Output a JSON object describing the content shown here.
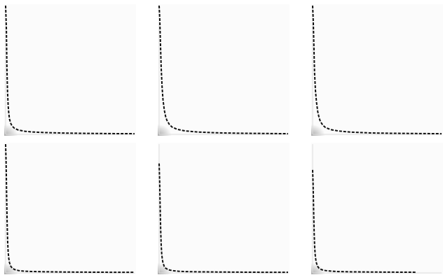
{
  "figure": {
    "background": "#ffffff",
    "panel_background": "#fbfbfb",
    "curve_color": "#111111",
    "density_color": "#666666",
    "layout": "2x3"
  },
  "chart_data": [
    {
      "type": "line",
      "xlim": [
        0,
        100
      ],
      "ylim": [
        0,
        100
      ],
      "grid": false,
      "series": [
        {
          "style": "dashed",
          "x": [
            0,
            0.6,
            1,
            1.5,
            2,
            2.5,
            3,
            4,
            5,
            7,
            10,
            15,
            20,
            30,
            45,
            60,
            80,
            100
          ],
          "y": [
            100,
            82,
            52,
            33,
            22,
            16,
            12,
            8.5,
            6.5,
            4.6,
            3.3,
            2.4,
            1.9,
            1.4,
            1.0,
            0.8,
            0.6,
            0.5
          ]
        }
      ]
    },
    {
      "type": "line",
      "xlim": [
        0,
        100
      ],
      "ylim": [
        0,
        100
      ],
      "grid": false,
      "series": [
        {
          "style": "dashed",
          "x": [
            0,
            0.5,
            1,
            1.6,
            2.3,
            3,
            4,
            5,
            6,
            8,
            10,
            14,
            20,
            30,
            45,
            60,
            80,
            100
          ],
          "y": [
            100,
            90,
            72,
            52,
            37,
            27,
            19,
            14,
            11,
            7.6,
            5.7,
            3.9,
            2.7,
            1.8,
            1.2,
            0.9,
            0.7,
            0.5
          ]
        }
      ]
    },
    {
      "type": "line",
      "xlim": [
        0,
        100
      ],
      "ylim": [
        0,
        100
      ],
      "grid": false,
      "series": [
        {
          "style": "dashed",
          "x": [
            0,
            0.5,
            1,
            1.5,
            2.2,
            3,
            4,
            5,
            6,
            8,
            10,
            14,
            20,
            30,
            45,
            60,
            80,
            100
          ],
          "y": [
            100,
            88,
            68,
            48,
            34,
            25,
            17.5,
            13,
            10,
            7,
            5.3,
            3.7,
            2.6,
            1.7,
            1.1,
            0.85,
            0.65,
            0.5
          ]
        }
      ]
    },
    {
      "type": "line",
      "xlim": [
        0,
        100
      ],
      "ylim": [
        0,
        100
      ],
      "grid": false,
      "series": [
        {
          "style": "dashed",
          "x": [
            0,
            0.4,
            0.8,
            1.2,
            1.6,
            2,
            2.5,
            3,
            4,
            5,
            7,
            10,
            15,
            20,
            30,
            45,
            60,
            80,
            100
          ],
          "y": [
            100,
            85,
            60,
            38,
            24,
            16,
            11,
            8,
            5.2,
            3.8,
            2.6,
            1.8,
            1.3,
            1.1,
            0.9,
            0.7,
            0.6,
            0.5,
            0.45
          ]
        }
      ]
    },
    {
      "type": "line",
      "xlim": [
        0,
        100
      ],
      "ylim": [
        0,
        100
      ],
      "grid": false,
      "series": [
        {
          "style": "dashed",
          "x": [
            0,
            0.4,
            0.8,
            1.2,
            1.6,
            2,
            2.5,
            3,
            4,
            5,
            7,
            10,
            15,
            20,
            30,
            45,
            60,
            80,
            100
          ],
          "y": [
            85,
            72,
            52,
            34,
            22,
            15,
            10.5,
            7.8,
            5,
            3.7,
            2.5,
            1.8,
            1.3,
            1.05,
            0.85,
            0.7,
            0.6,
            0.5,
            0.45
          ]
        }
      ]
    },
    {
      "type": "line",
      "xlim": [
        0,
        100
      ],
      "ylim": [
        0,
        100
      ],
      "grid": false,
      "series": [
        {
          "style": "dashed",
          "x": [
            0,
            0.4,
            0.8,
            1.2,
            1.6,
            2,
            2.5,
            3,
            4,
            5,
            7,
            10,
            15,
            20,
            30,
            45,
            60,
            80
          ],
          "y": [
            80,
            68,
            48,
            31,
            20,
            14,
            10,
            7.5,
            4.9,
            3.6,
            2.5,
            1.8,
            1.3,
            1.05,
            0.85,
            0.7,
            0.6,
            0.5
          ]
        }
      ]
    }
  ]
}
